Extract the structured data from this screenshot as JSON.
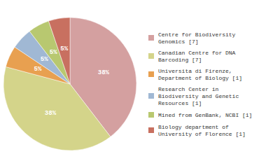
{
  "chart_data": {
    "type": "pie",
    "categories": [
      "Centre for Biodiversity\nGenomics [7]",
      "Canadian Centre for DNA\nBarcoding [7]",
      "Universita di Firenze,\nDepartment of Biology [1]",
      "Research Center in\nBiodiversity and Genetic\nResources [1]",
      "Mined from GenBank, NCBI [1]",
      "Biology department of\nUniversity of Florence [1]"
    ],
    "values": [
      38,
      38,
      5,
      5,
      5,
      5
    ],
    "value_labels": [
      "38%",
      "38%",
      "5%",
      "5%",
      "5%",
      "5%"
    ],
    "colors": [
      "#d4a0a0",
      "#d4d48a",
      "#e8a050",
      "#a0b8d4",
      "#b8c870",
      "#c87060"
    ],
    "data_labels": true,
    "legend": "right"
  }
}
